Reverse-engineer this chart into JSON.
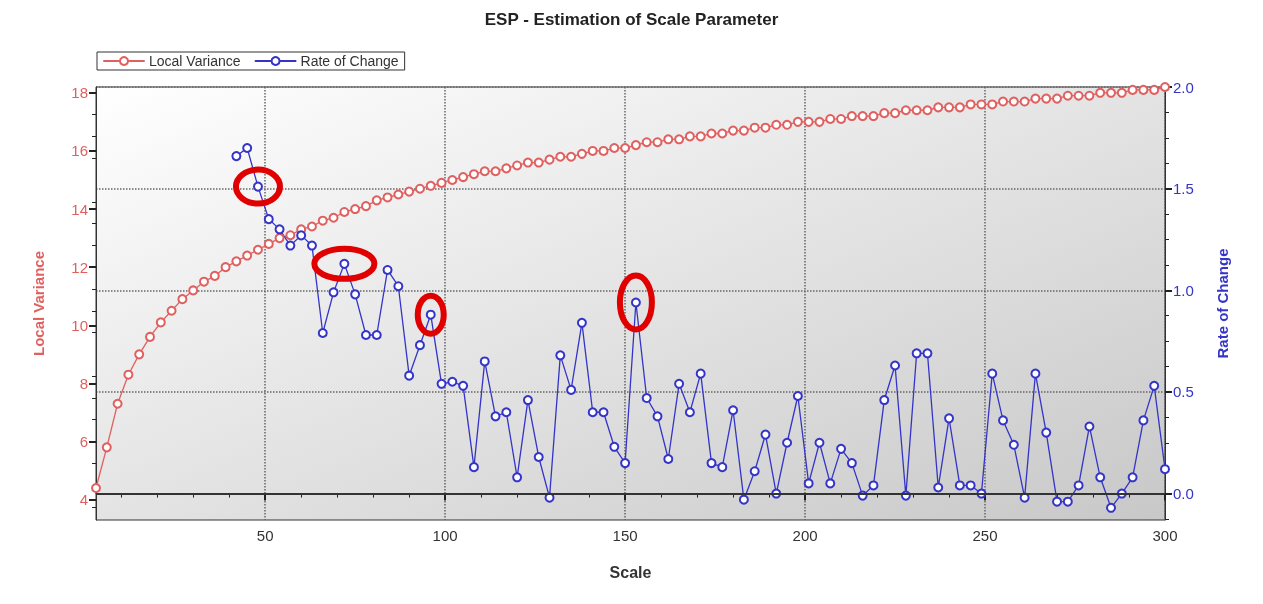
{
  "chart_data": {
    "type": "line",
    "title": "ESP - Estimation of Scale Parameter",
    "xlabel": "Scale",
    "ylabel": "Local Variance",
    "y2label": "Rate of Change",
    "xlim": [
      3,
      300
    ],
    "xticks": [
      50,
      100,
      150,
      200,
      250,
      300
    ],
    "ylim": [
      3.3,
      18.2
    ],
    "yticks": [
      4,
      6,
      8,
      10,
      12,
      14,
      16,
      18
    ],
    "y2lim": [
      -0.13,
      2.0
    ],
    "y2ticks": [
      {
        "value": 0,
        "label": "0.0"
      },
      0.5,
      {
        "value": 1,
        "label": "1.0"
      },
      1.5,
      {
        "value": 2,
        "label": "2.0"
      }
    ],
    "grid": true,
    "legend": "top left",
    "marker": "circle",
    "line_style": "solid",
    "ref_lines": [
      {
        "axis": "y2",
        "value": 0,
        "color": "#333333"
      }
    ],
    "series": [
      {
        "name": "Local Variance",
        "color": "#e06060",
        "x": [
          3,
          6,
          9,
          12,
          15,
          18,
          21,
          24,
          27,
          30,
          33,
          36,
          39,
          42,
          45,
          48,
          51,
          54,
          57,
          60,
          63,
          66,
          69,
          72,
          75,
          78,
          81,
          84,
          87,
          90,
          93,
          96,
          99,
          102,
          105,
          108,
          111,
          114,
          117,
          120,
          123,
          126,
          129,
          132,
          135,
          138,
          141,
          144,
          147,
          150,
          153,
          156,
          159,
          162,
          165,
          168,
          171,
          174,
          177,
          180,
          183,
          186,
          189,
          192,
          195,
          198,
          201,
          204,
          207,
          210,
          213,
          216,
          219,
          222,
          225,
          228,
          231,
          234,
          237,
          240,
          243,
          246,
          249,
          252,
          255,
          258,
          261,
          264,
          267,
          270,
          273,
          276,
          279,
          282,
          285,
          288,
          291,
          294,
          297,
          300
        ],
        "values": [
          4.4,
          5.8,
          7.3,
          8.3,
          9.0,
          9.6,
          10.1,
          10.5,
          10.9,
          11.2,
          11.5,
          11.7,
          12.0,
          12.2,
          12.4,
          12.6,
          12.8,
          13.0,
          13.1,
          13.3,
          13.4,
          13.6,
          13.7,
          13.9,
          14.0,
          14.1,
          14.3,
          14.4,
          14.5,
          14.6,
          14.7,
          14.8,
          14.9,
          15.0,
          15.1,
          15.2,
          15.3,
          15.3,
          15.4,
          15.5,
          15.6,
          15.6,
          15.7,
          15.8,
          15.8,
          15.9,
          16.0,
          16.0,
          16.1,
          16.1,
          16.2,
          16.3,
          16.3,
          16.4,
          16.4,
          16.5,
          16.5,
          16.6,
          16.6,
          16.7,
          16.7,
          16.8,
          16.8,
          16.9,
          16.9,
          17.0,
          17.0,
          17.0,
          17.1,
          17.1,
          17.2,
          17.2,
          17.2,
          17.3,
          17.3,
          17.4,
          17.4,
          17.4,
          17.5,
          17.5,
          17.5,
          17.6,
          17.6,
          17.6,
          17.7,
          17.7,
          17.7,
          17.8,
          17.8,
          17.8,
          17.9,
          17.9,
          17.9,
          18.0,
          18.0,
          18.0,
          18.1,
          18.1,
          18.1,
          18.2
        ]
      },
      {
        "name": "Rate of Change",
        "color": "#3434c8",
        "axis": "y2",
        "x": [
          42,
          45,
          48,
          51,
          54,
          57,
          60,
          63,
          66,
          69,
          72,
          75,
          78,
          81,
          84,
          87,
          90,
          93,
          96,
          99,
          102,
          105,
          108,
          111,
          114,
          117,
          120,
          123,
          126,
          129,
          132,
          135,
          138,
          141,
          144,
          147,
          150,
          153,
          156,
          159,
          162,
          165,
          168,
          171,
          174,
          177,
          180,
          183,
          186,
          189,
          192,
          195,
          198,
          201,
          204,
          207,
          210,
          213,
          216,
          219,
          222,
          225,
          228,
          231,
          234,
          237,
          240,
          243,
          246,
          249,
          252,
          255,
          258,
          261,
          264,
          267,
          270,
          273,
          276,
          279,
          282,
          285,
          288,
          291,
          294,
          297,
          300
        ],
        "values": [
          1.66,
          1.7,
          1.51,
          1.35,
          1.3,
          1.22,
          1.27,
          1.22,
          0.79,
          0.99,
          1.13,
          0.98,
          0.78,
          0.78,
          1.1,
          1.02,
          0.58,
          0.73,
          0.88,
          0.54,
          0.55,
          0.53,
          0.13,
          0.65,
          0.38,
          0.4,
          0.08,
          0.46,
          0.18,
          -0.02,
          0.68,
          0.51,
          0.84,
          0.4,
          0.4,
          0.23,
          0.15,
          0.94,
          0.47,
          0.38,
          0.17,
          0.54,
          0.4,
          0.59,
          0.15,
          0.13,
          0.41,
          -0.03,
          0.11,
          0.29,
          0.0,
          0.25,
          0.48,
          0.05,
          0.25,
          0.05,
          0.22,
          0.15,
          -0.01,
          0.04,
          0.46,
          0.63,
          -0.01,
          0.69,
          0.69,
          0.03,
          0.37,
          0.04,
          0.04,
          0.0,
          0.59,
          0.36,
          0.24,
          -0.02,
          0.59,
          0.3,
          -0.04,
          -0.04,
          0.04,
          0.33,
          0.08,
          -0.07,
          0.0,
          0.08,
          0.36,
          0.53,
          0.12
        ]
      }
    ]
  }
}
